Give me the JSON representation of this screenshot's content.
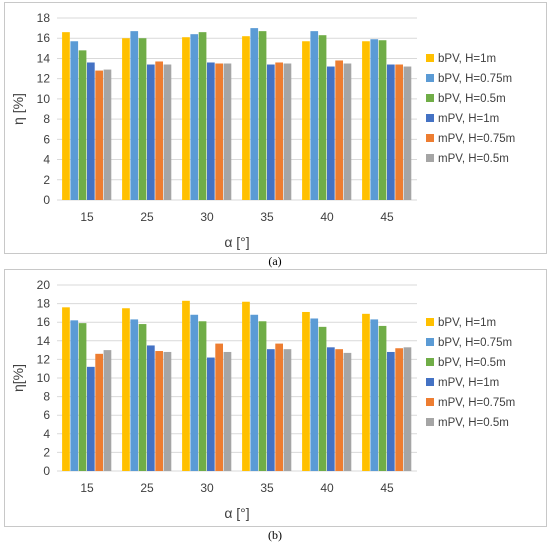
{
  "figure": {
    "caption_a": "(a)",
    "caption_b": "(b)"
  },
  "chart_data": [
    {
      "type": "bar",
      "categories": [
        "15",
        "25",
        "30",
        "35",
        "40",
        "45"
      ],
      "xlabel": "α [°]",
      "ylabel": "η [%]",
      "ylim": [
        0,
        18
      ],
      "yticks": [
        0,
        2,
        4,
        6,
        8,
        10,
        12,
        14,
        16,
        18
      ],
      "grid": true,
      "legend_placement": "right",
      "series": [
        {
          "name": "bPV, H=1m",
          "color": "#FFC000",
          "values": [
            16.6,
            16.0,
            16.1,
            16.2,
            15.7,
            15.7
          ]
        },
        {
          "name": "bPV, H=0.75m",
          "color": "#5B9BD5",
          "values": [
            15.7,
            16.7,
            16.4,
            17.0,
            16.7,
            15.9
          ]
        },
        {
          "name": "bPV, H=0.5m",
          "color": "#70AD47",
          "values": [
            14.8,
            16.0,
            16.6,
            16.7,
            16.3,
            15.8
          ]
        },
        {
          "name": "mPV, H=1m",
          "color": "#4472C4",
          "values": [
            13.6,
            13.4,
            13.6,
            13.4,
            13.2,
            13.4
          ]
        },
        {
          "name": "mPV, H=0.75m",
          "color": "#ED7D31",
          "values": [
            12.8,
            13.7,
            13.5,
            13.6,
            13.8,
            13.4
          ]
        },
        {
          "name": "mPV, H=0.5m",
          "color": "#A5A5A5",
          "values": [
            12.9,
            13.4,
            13.5,
            13.5,
            13.5,
            13.2
          ]
        }
      ]
    },
    {
      "type": "bar",
      "categories": [
        "15",
        "25",
        "30",
        "35",
        "40",
        "45"
      ],
      "xlabel": "α [°]",
      "ylabel": "η[%]",
      "ylim": [
        0,
        20
      ],
      "yticks": [
        0,
        2,
        4,
        6,
        8,
        10,
        12,
        14,
        16,
        18,
        20
      ],
      "grid": true,
      "legend_placement": "right",
      "series": [
        {
          "name": "bPV, H=1m",
          "color": "#FFC000",
          "values": [
            17.6,
            17.5,
            18.3,
            18.2,
            17.1,
            16.9
          ]
        },
        {
          "name": "bPV, H=0.75m",
          "color": "#5B9BD5",
          "values": [
            16.2,
            16.3,
            16.8,
            16.8,
            16.4,
            16.3
          ]
        },
        {
          "name": "bPV, H=0.5m",
          "color": "#70AD47",
          "values": [
            15.9,
            15.8,
            16.1,
            16.1,
            15.5,
            15.6
          ]
        },
        {
          "name": "mPV, H=1m",
          "color": "#4472C4",
          "values": [
            11.2,
            13.5,
            12.2,
            13.1,
            13.3,
            12.8
          ]
        },
        {
          "name": "mPV, H=0.75m",
          "color": "#ED7D31",
          "values": [
            12.6,
            12.9,
            13.7,
            13.7,
            13.1,
            13.2
          ]
        },
        {
          "name": "mPV, H=0.5m",
          "color": "#A5A5A5",
          "values": [
            13.0,
            12.8,
            12.8,
            13.1,
            12.7,
            13.3
          ]
        }
      ]
    }
  ]
}
